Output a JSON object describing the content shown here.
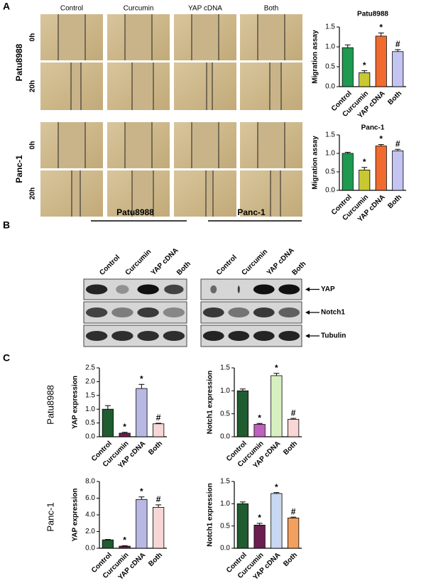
{
  "panel_labels": [
    "A",
    "B",
    "C"
  ],
  "panel_a": {
    "columns": [
      "Control",
      "Curcumin",
      "YAP cDNA",
      "Both"
    ],
    "cell_lines": [
      "Patu8988",
      "Panc-1"
    ],
    "timepoints": [
      "0h",
      "20h"
    ]
  },
  "panel_b": {
    "cell_lines": [
      "Patu8988",
      "Panc-1"
    ],
    "lanes": [
      "Control",
      "Curcumin",
      "YAP cDNA",
      "Both"
    ],
    "proteins": [
      "YAP",
      "Notch1",
      "Tubulin"
    ]
  },
  "panel_c": {
    "cell_lines": [
      "Patu8988",
      "Panc-1"
    ]
  },
  "chart_data": [
    {
      "type": "bar",
      "title": "Patu8988",
      "y_label": "Migration assay",
      "categories": [
        "Control",
        "Curcumin",
        "YAP cDNA",
        "Both"
      ],
      "values": [
        0.98,
        0.35,
        1.27,
        0.88
      ],
      "errors": [
        0.07,
        0.05,
        0.08,
        0.05
      ],
      "annotations": [
        null,
        "*",
        "*",
        "#"
      ],
      "colors": [
        "#1e9a50",
        "#c8c832",
        "#f26b2e",
        "#c4c4f2"
      ],
      "ylim": [
        0,
        1.5
      ],
      "yticks": [
        {
          "value": 0,
          "label": "0.0"
        },
        0.5,
        {
          "value": 1,
          "label": "1.0"
        },
        1.5
      ]
    },
    {
      "type": "bar",
      "title": "Panc-1",
      "y_label": "Migration assay",
      "categories": [
        "Control",
        "Curcumin",
        "YAP cDNA",
        "Both"
      ],
      "values": [
        1.0,
        0.55,
        1.2,
        1.07
      ],
      "errors": [
        0.03,
        0.07,
        0.04,
        0.04
      ],
      "annotations": [
        null,
        "*",
        "*",
        "#"
      ],
      "colors": [
        "#1e9a50",
        "#c8c832",
        "#f26b2e",
        "#c4c4f2"
      ],
      "ylim": [
        0,
        1.5
      ],
      "yticks": [
        {
          "value": 0,
          "label": "0.0"
        },
        0.5,
        {
          "value": 1,
          "label": "1.0"
        },
        1.5
      ]
    },
    {
      "type": "bar",
      "y_label": "YAP expression",
      "categories": [
        "Control",
        "Curcumin",
        "YAP cDNA",
        "Both"
      ],
      "values": [
        1.0,
        0.13,
        1.75,
        0.47
      ],
      "errors": [
        0.13,
        0.03,
        0.15,
        0.02
      ],
      "annotations": [
        null,
        "*",
        "*",
        "#"
      ],
      "colors": [
        "#1f5c30",
        "#6a1f50",
        "#b8b8e2",
        "#f8d6d6"
      ],
      "ylim": [
        0,
        2.5
      ],
      "yticks": [
        {
          "value": 0,
          "label": "0.0"
        },
        0.5,
        {
          "value": 1,
          "label": "1.0"
        },
        1.5,
        {
          "value": 2,
          "label": "2.0"
        },
        2.5
      ]
    },
    {
      "type": "bar",
      "y_label": "Notch1 expression",
      "categories": [
        "Control",
        "Curcumin",
        "YAP cDNA",
        "Both"
      ],
      "values": [
        1.0,
        0.27,
        1.33,
        0.38
      ],
      "errors": [
        0.04,
        0.02,
        0.05,
        0.02
      ],
      "annotations": [
        null,
        "*",
        "*",
        "#"
      ],
      "colors": [
        "#1f5c30",
        "#c060c0",
        "#d8f0c0",
        "#f8d6d6"
      ],
      "ylim": [
        0,
        1.5
      ],
      "yticks": [
        {
          "value": 0,
          "label": "0.0"
        },
        0.5,
        {
          "value": 1,
          "label": "1.0"
        },
        1.5
      ]
    },
    {
      "type": "bar",
      "y_label": "YAP expression",
      "categories": [
        "Control",
        "Curcumin",
        "YAP cDNA",
        "Both"
      ],
      "values": [
        1.0,
        0.25,
        5.85,
        4.9
      ],
      "errors": [
        0.05,
        0.05,
        0.3,
        0.3
      ],
      "annotations": [
        null,
        "*",
        "*",
        "#"
      ],
      "colors": [
        "#1f5c30",
        "#6a1f50",
        "#b8b8e2",
        "#f8d6d6"
      ],
      "ylim": [
        0,
        8
      ],
      "yticks": [
        {
          "value": 0,
          "label": "0.0"
        },
        {
          "value": 2,
          "label": "2.0"
        },
        {
          "value": 4,
          "label": "4.0"
        },
        {
          "value": 6,
          "label": "6.0"
        },
        {
          "value": 8,
          "label": "8.0"
        }
      ]
    },
    {
      "type": "bar",
      "y_label": "Notch1 expression",
      "categories": [
        "Control",
        "Curcumin",
        "YAP cDNA",
        "Both"
      ],
      "values": [
        1.0,
        0.52,
        1.23,
        0.68
      ],
      "errors": [
        0.04,
        0.04,
        0.02,
        0.02
      ],
      "annotations": [
        null,
        "*",
        "*",
        "#"
      ],
      "colors": [
        "#1f5c30",
        "#6a1f50",
        "#c8d8f2",
        "#f2a060"
      ],
      "ylim": [
        0,
        1.5
      ],
      "yticks": [
        {
          "value": 0,
          "label": "0.0"
        },
        0.5,
        {
          "value": 1,
          "label": "1.0"
        },
        1.5
      ]
    }
  ]
}
